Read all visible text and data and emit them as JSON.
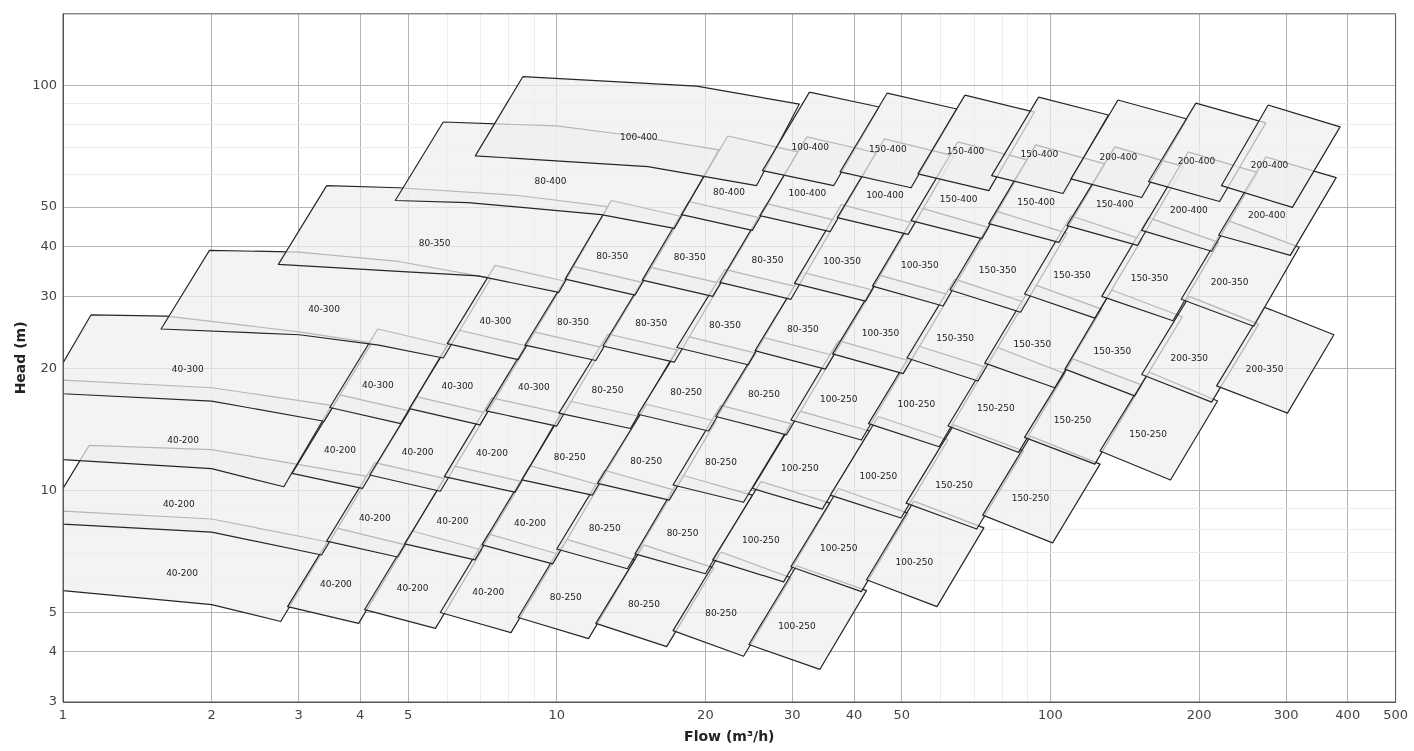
{
  "chart_data": {
    "type": "area",
    "xlabel": "Flow (m³/h)",
    "ylabel": "Head (m)",
    "log": "xy",
    "xlim": [
      1,
      500
    ],
    "ylim": [
      3,
      150
    ],
    "xticks": [
      1,
      2,
      3,
      4,
      5,
      {
        "value": 6,
        "label": null
      },
      {
        "value": 7,
        "label": null
      },
      {
        "value": 8,
        "label": null
      },
      {
        "value": 9,
        "label": null
      },
      10,
      20,
      30,
      40,
      50,
      {
        "value": 60,
        "label": null
      },
      {
        "value": 70,
        "label": null
      },
      {
        "value": 80,
        "label": null
      },
      {
        "value": 90,
        "label": null
      },
      100,
      200,
      300,
      400,
      500
    ],
    "yticks": [
      3,
      4,
      5,
      {
        "value": 6,
        "label": null
      },
      {
        "value": 7,
        "label": null
      },
      {
        "value": 8,
        "label": null
      },
      {
        "value": 9,
        "label": null
      },
      10,
      20,
      30,
      40,
      50,
      {
        "value": 60,
        "label": null
      },
      {
        "value": 70,
        "label": null
      },
      {
        "value": 80,
        "label": null
      },
      {
        "value": 90,
        "label": null
      },
      100
    ],
    "grid": true,
    "color": "#efefef",
    "series": [
      {
        "name": "40-200",
        "x": [
          1,
          2,
          3.45,
          2.76,
          2,
          1
        ],
        "values": [
          8.88,
          8.49,
          7.45,
          4.74,
          5.22,
          5.65
        ]
      },
      {
        "name": "40-200",
        "x": [
          3.57,
          4.94,
          3.97,
          2.85
        ],
        "values": [
          8.07,
          7.33,
          4.69,
          5.16
        ]
      },
      {
        "name": "40-200",
        "x": [
          5.1,
          7.06,
          5.68,
          4.08
        ],
        "values": [
          7.93,
          7.12,
          4.56,
          5.07
        ]
      },
      {
        "name": "40-200",
        "x": [
          7.26,
          10.05,
          8.08,
          5.81
        ],
        "values": [
          7.8,
          6.96,
          4.45,
          4.99
        ]
      },
      {
        "name": "80-250",
        "x": [
          10.4,
          14.4,
          11.6,
          8.35
        ],
        "values": [
          7.58,
          6.73,
          4.3,
          4.85
        ]
      },
      {
        "name": "80-250",
        "x": [
          15,
          20.8,
          16.7,
          12
        ],
        "values": [
          7.33,
          6.43,
          4.11,
          4.69
        ]
      },
      {
        "name": "80-250",
        "x": [
          21.5,
          29.8,
          23.9,
          17.2
        ],
        "values": [
          7.04,
          6.08,
          3.89,
          4.5
        ]
      },
      {
        "name": "100-250",
        "x": [
          30.6,
          42.4,
          34.1,
          24.5
        ],
        "values": [
          6.51,
          5.65,
          3.61,
          4.16
        ]
      },
      {
        "name": "40-200",
        "x": [
          1.13,
          2,
          4.16,
          3.34,
          2,
          1,
          1
        ],
        "values": [
          12.9,
          12.6,
          10.8,
          6.92,
          7.88,
          8.25,
          10.1
        ]
      },
      {
        "name": "40-200",
        "x": [
          4.28,
          5.92,
          4.76,
          3.42
        ],
        "values": [
          11.7,
          10.7,
          6.84,
          7.49
        ]
      },
      {
        "name": "40-200",
        "x": [
          6.14,
          8.5,
          6.83,
          4.92
        ],
        "values": [
          11.5,
          10.5,
          6.73,
          7.37
        ]
      },
      {
        "name": "40-200",
        "x": [
          8.82,
          12.2,
          9.81,
          7.06
        ],
        "values": [
          11.5,
          10.3,
          6.58,
          7.33
        ]
      },
      {
        "name": "80-250",
        "x": [
          12.5,
          17.3,
          13.9,
          10
        ],
        "values": [
          11.2,
          10,
          6.4,
          7.16
        ]
      },
      {
        "name": "80-250",
        "x": [
          17.9,
          24.9,
          20,
          14.4
        ],
        "values": [
          10.9,
          9.72,
          6.22,
          6.96
        ]
      },
      {
        "name": "100-250",
        "x": [
          25.9,
          35.8,
          28.8,
          20.7
        ],
        "values": [
          10.5,
          9.29,
          5.94,
          6.73
        ]
      },
      {
        "name": "100-250",
        "x": [
          37.2,
          51.5,
          41.4,
          29.8
        ],
        "values": [
          10.1,
          8.78,
          5.62,
          6.47
        ]
      },
      {
        "name": "100-250",
        "x": [
          52.9,
          73.3,
          58.9,
          42.4
        ],
        "values": [
          9.4,
          8.07,
          5.16,
          6.01
        ]
      },
      {
        "name": "40-200",
        "x": [
          1,
          2,
          3.5,
          2.8,
          2,
          1
        ],
        "values": [
          18.7,
          17.9,
          16.2,
          10.2,
          11.3,
          11.9
        ]
      },
      {
        "name": "40-200",
        "x": [
          3.64,
          5.03,
          4.04,
          2.91
        ],
        "values": [
          17.2,
          15.7,
          10.1,
          11
        ]
      },
      {
        "name": "40-200",
        "x": [
          5.22,
          7.23,
          5.81,
          4.18
        ],
        "values": [
          17,
          15.5,
          9.94,
          10.9
        ]
      },
      {
        "name": "40-200",
        "x": [
          7.39,
          10.2,
          8.23,
          5.92
        ],
        "values": [
          16.9,
          15.5,
          9.89,
          10.8
        ]
      },
      {
        "name": "80-250",
        "x": [
          10.6,
          14.7,
          11.8,
          8.5
        ],
        "values": [
          16.6,
          15.2,
          9.72,
          10.6
        ]
      },
      {
        "name": "80-250",
        "x": [
          15.2,
          21,
          16.9,
          12.1
        ],
        "values": [
          16.3,
          14.8,
          9.45,
          10.4
        ]
      },
      {
        "name": "80-250",
        "x": [
          21.5,
          29.8,
          23.9,
          17.2
        ],
        "values": [
          16.2,
          14.6,
          9.34,
          10.3
        ]
      },
      {
        "name": "100-250",
        "x": [
          31,
          43,
          34.5,
          24.9
        ],
        "values": [
          15.7,
          14,
          8.98,
          10.1
        ]
      },
      {
        "name": "100-250",
        "x": [
          44.8,
          62,
          49.8,
          35.8
        ],
        "values": [
          15.2,
          13.3,
          8.54,
          9.72
        ]
      },
      {
        "name": "150-250",
        "x": [
          63.7,
          88.2,
          70.9,
          51
        ],
        "values": [
          14.5,
          12.5,
          8.02,
          9.29
        ]
      },
      {
        "name": "150-250",
        "x": [
          91.1,
          126,
          101,
          72.9
        ],
        "values": [
          13.6,
          11.6,
          7.41,
          8.68
        ]
      },
      {
        "name": "40-300",
        "x": [
          1.14,
          1.62,
          3.01,
          4.22,
          3.38,
          2,
          1,
          1
        ],
        "values": [
          27.1,
          26.9,
          24.6,
          23.1,
          14.8,
          16.6,
          17.3,
          20.6
        ]
      },
      {
        "name": "40-300",
        "x": [
          4.34,
          6,
          4.83,
          3.47
        ],
        "values": [
          25,
          22.8,
          14.6,
          16
        ]
      },
      {
        "name": "40-300",
        "x": [
          6.29,
          8.7,
          6.99,
          5.03
        ],
        "values": [
          24.9,
          22.7,
          14.5,
          15.9
        ]
      },
      {
        "name": "40-300",
        "x": [
          8.99,
          12.4,
          10,
          7.19
        ],
        "values": [
          24.6,
          22.5,
          14.4,
          15.7
        ]
      },
      {
        "name": "80-250",
        "x": [
          12.7,
          17.5,
          14.1,
          10.1
        ],
        "values": [
          24.3,
          22.2,
          14.2,
          15.5
        ]
      },
      {
        "name": "80-250",
        "x": [
          18.3,
          25.3,
          20.3,
          14.6
        ],
        "values": [
          24,
          21.8,
          14,
          15.4
        ]
      },
      {
        "name": "80-250",
        "x": [
          26.3,
          36.4,
          29.2,
          21
        ],
        "values": [
          23.8,
          21.5,
          13.7,
          15.2
        ]
      },
      {
        "name": "100-250",
        "x": [
          37.2,
          51.5,
          41.4,
          29.8
        ],
        "values": [
          23.4,
          20.9,
          13.3,
          14.9
        ]
      },
      {
        "name": "100-250",
        "x": [
          53.4,
          74,
          59.5,
          42.8
        ],
        "values": [
          22.8,
          20.1,
          12.8,
          14.6
        ]
      },
      {
        "name": "150-250",
        "x": [
          77.5,
          107,
          86.2,
          62
        ],
        "values": [
          22.6,
          19.4,
          12.4,
          14.4
        ]
      },
      {
        "name": "150-250",
        "x": [
          111,
          153,
          123,
          88.6
        ],
        "values": [
          21.1,
          18.2,
          11.6,
          13.5
        ]
      },
      {
        "name": "150-250",
        "x": [
          158,
          218,
          175,
          126
        ],
        "values": [
          19.6,
          16.6,
          10.6,
          12.5
        ]
      },
      {
        "name": "40-300",
        "x": [
          1.98,
          3.01,
          4.78,
          7.36,
          5.89,
          4.36,
          3.01,
          1.58
        ],
        "values": [
          39.1,
          38.7,
          36.7,
          33.4,
          21.2,
          22.8,
          24.2,
          25
        ]
      },
      {
        "name": "40-300",
        "x": [
          7.5,
          10.4,
          8.35,
          6
        ],
        "values": [
          35.9,
          32.8,
          21,
          23
        ]
      },
      {
        "name": "80-350",
        "x": [
          10.8,
          14.9,
          12,
          8.62
        ],
        "values": [
          35.7,
          32.6,
          20.9,
          22.8
        ]
      },
      {
        "name": "80-350",
        "x": [
          15.5,
          21.5,
          17.3,
          12.4
        ],
        "values": [
          35.5,
          32.4,
          20.7,
          22.7
        ]
      },
      {
        "name": "80-350",
        "x": [
          21.9,
          30.3,
          24.4,
          17.5
        ],
        "values": [
          35.1,
          31.9,
          20.4,
          22.5
        ]
      },
      {
        "name": "80-350",
        "x": [
          31.5,
          43.6,
          35,
          25.2
        ],
        "values": [
          34.5,
          31.2,
          19.9,
          22.1
        ]
      },
      {
        "name": "100-350",
        "x": [
          45.2,
          62.6,
          50.3,
          36.2
        ],
        "values": [
          33.9,
          30.3,
          19.4,
          21.7
        ]
      },
      {
        "name": "150-350",
        "x": [
          64,
          88.6,
          71.3,
          51.2
        ],
        "values": [
          33.2,
          29.1,
          18.6,
          21.2
        ]
      },
      {
        "name": "150-350",
        "x": [
          91.9,
          127,
          102,
          73.6
        ],
        "values": [
          32.3,
          28,
          17.9,
          20.6
        ]
      },
      {
        "name": "150-350",
        "x": [
          133,
          185,
          148,
          107
        ],
        "values": [
          31.2,
          26.8,
          17.1,
          19.9
        ]
      },
      {
        "name": "200-350",
        "x": [
          191,
          264,
          212,
          153
        ],
        "values": [
          30.1,
          25.7,
          16.5,
          19.3
        ]
      },
      {
        "name": "200-350",
        "x": [
          271,
          375,
          302,
          217
        ],
        "values": [
          28.3,
          24.2,
          15.5,
          18.1
        ]
      },
      {
        "name": "80-350",
        "x": [
          3.42,
          4.78,
          8.35,
          12.7,
          10.1,
          6.93,
          4.78,
          2.73
        ],
        "values": [
          56.5,
          55.8,
          53.4,
          50.1,
          30.8,
          33.8,
          34.7,
          36.1
        ]
      },
      {
        "name": "80-350",
        "x": [
          12.9,
          17.9,
          14.4,
          10.4
        ],
        "values": [
          51.9,
          47.4,
          30.3,
          33.2
        ]
      },
      {
        "name": "80-350",
        "x": [
          18.5,
          25.7,
          20.7,
          14.9
        ],
        "values": [
          51.6,
          47.1,
          30.1,
          33
        ]
      },
      {
        "name": "80-350",
        "x": [
          26.6,
          36.9,
          29.8,
          21.4
        ],
        "values": [
          51,
          46.3,
          29.6,
          32.6
        ]
      },
      {
        "name": "100-350",
        "x": [
          37.7,
          52.2,
          42.2,
          30.3
        ],
        "values": [
          50.7,
          45.8,
          29.3,
          32.4
        ]
      },
      {
        "name": "100-350",
        "x": [
          54.2,
          75,
          60.6,
          43.6
        ],
        "values": [
          49.9,
          44.5,
          28.5,
          31.9
        ]
      },
      {
        "name": "150-350",
        "x": [
          77.8,
          108,
          87,
          62.6
        ],
        "values": [
          48.8,
          43.1,
          27.5,
          31.2
        ]
      },
      {
        "name": "150-350",
        "x": [
          110,
          153,
          123,
          88.6
        ],
        "values": [
          47.6,
          41.6,
          26.6,
          30.5
        ]
      },
      {
        "name": "150-350",
        "x": [
          158,
          219,
          177,
          127
        ],
        "values": [
          47.1,
          40.9,
          26.2,
          30.1
        ]
      },
      {
        "name": "200-350",
        "x": [
          229,
          319,
          258,
          184
        ],
        "values": [
          46.3,
          39.8,
          25.4,
          29.6
        ]
      },
      {
        "name": "80-400",
        "x": [
          5.89,
          10,
          14.4,
          21.3,
          17.3,
          12.3,
          6.61,
          4.71
        ],
        "values": [
          81.1,
          79.3,
          74.9,
          69.2,
          44.3,
          47.9,
          51.3,
          51.9
        ]
      },
      {
        "name": "80-400",
        "x": [
          22.2,
          30.8,
          24.9,
          17.9
        ],
        "values": [
          74.9,
          68.4,
          43.8,
          47.9
        ]
      },
      {
        "name": "100-400",
        "x": [
          32.1,
          44.4,
          35.8,
          25.8
        ],
        "values": [
          74.5,
          68.1,
          43.5,
          47.6
        ]
      },
      {
        "name": "100-400",
        "x": [
          46.1,
          63.7,
          51.5,
          37
        ],
        "values": [
          73.7,
          66.9,
          42.8,
          47.1
        ]
      },
      {
        "name": "150-400",
        "x": [
          64.9,
          89.9,
          72.6,
          52.2
        ],
        "values": [
          72.4,
          65.4,
          41.8,
          46.3
        ]
      },
      {
        "name": "150-400",
        "x": [
          93.3,
          129,
          104,
          75
        ],
        "values": [
          71.2,
          63.9,
          40.9,
          45.5
        ]
      },
      {
        "name": "150-400",
        "x": [
          135,
          186,
          150,
          108
        ],
        "values": [
          70.4,
          62.9,
          40.2,
          45
        ]
      },
      {
        "name": "200-400",
        "x": [
          190,
          263,
          212,
          153
        ],
        "values": [
          68.4,
          60.8,
          38.9,
          43.8
        ]
      },
      {
        "name": "200-400",
        "x": [
          273,
          379,
          306,
          219
        ],
        "values": [
          66.5,
          59.1,
          38,
          42.6
        ]
      },
      {
        "name": "100-400",
        "x": [
          8.54,
          19.2,
          31,
          25.4,
          15.3,
          6.84
        ],
        "values": [
          105,
          99.4,
          89.8,
          56.5,
          62.9,
          66.9
        ]
      },
      {
        "name": "100-400",
        "x": [
          32.5,
          45,
          36.4,
          26.1
        ],
        "values": [
          96.1,
          88.3,
          56.5,
          61.5
        ]
      },
      {
        "name": "150-400",
        "x": [
          46.7,
          64.6,
          52.2,
          37.5
        ],
        "values": [
          95.6,
          87.3,
          55.8,
          61.1
        ]
      },
      {
        "name": "150-400",
        "x": [
          67.1,
          92.8,
          75,
          53.9
        ],
        "values": [
          94.5,
          85.8,
          54.9,
          60.4
        ]
      },
      {
        "name": "150-400",
        "x": [
          94.6,
          131,
          106,
          76
        ],
        "values": [
          93.4,
          84.4,
          54,
          59.8
        ]
      },
      {
        "name": "200-400",
        "x": [
          137,
          189,
          153,
          110
        ],
        "values": [
          91.9,
          82.5,
          52.8,
          58.7
        ]
      },
      {
        "name": "200-400",
        "x": [
          197,
          273,
          220,
          158
        ],
        "values": [
          90.3,
          80.7,
          51.6,
          57.8
        ]
      },
      {
        "name": "200-400",
        "x": [
          276,
          386,
          309,
          222
        ],
        "values": [
          89.3,
          78.9,
          49.9,
          56.5
        ]
      }
    ]
  }
}
